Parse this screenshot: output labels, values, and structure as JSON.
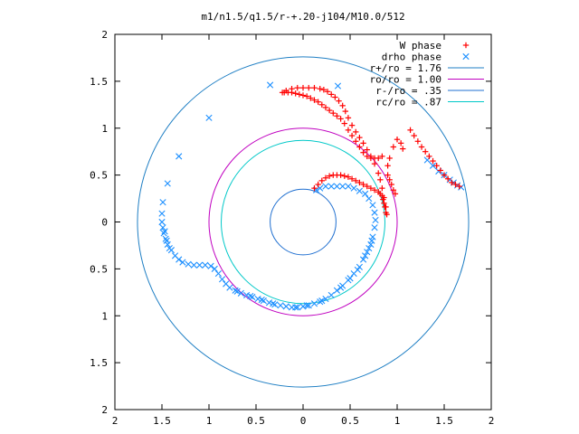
{
  "chart_data": {
    "type": "scatter",
    "title": "m1/n1.5/q1.5/r-+.20-j104/M10.0/512",
    "xlim": [
      -2,
      2
    ],
    "ylim": [
      -2,
      2
    ],
    "x_ticks": [
      -2,
      -1.5,
      -1,
      -0.5,
      0,
      0.5,
      1,
      1.5,
      2
    ],
    "y_ticks": [
      -2,
      -1.5,
      -1,
      -0.5,
      0,
      0.5,
      1,
      1.5,
      2
    ],
    "x_tick_labels": [
      "2",
      "1.5",
      "1",
      "0.5",
      "0",
      "0.5",
      "1",
      "1.5",
      "2"
    ],
    "y_tick_labels": [
      "2",
      "1.5",
      "1",
      "0.5",
      "0",
      "0.5",
      "1",
      "1.5",
      "2"
    ],
    "grid": false,
    "legend_position": "top-right",
    "series": [
      {
        "name": "W phase",
        "marker": "plus",
        "color": "#ff0000",
        "points": [
          [
            -0.22,
            1.38
          ],
          [
            -0.18,
            1.4
          ],
          [
            -0.12,
            1.42
          ],
          [
            -0.06,
            1.43
          ],
          [
            0.0,
            1.43
          ],
          [
            0.06,
            1.43
          ],
          [
            0.12,
            1.43
          ],
          [
            0.18,
            1.42
          ],
          [
            0.22,
            1.41
          ],
          [
            0.26,
            1.39
          ],
          [
            0.3,
            1.36
          ],
          [
            0.34,
            1.33
          ],
          [
            0.38,
            1.29
          ],
          [
            0.42,
            1.24
          ],
          [
            0.45,
            1.18
          ],
          [
            0.48,
            1.11
          ],
          [
            0.52,
            1.03
          ],
          [
            0.56,
            0.96
          ],
          [
            0.6,
            0.9
          ],
          [
            0.64,
            0.84
          ],
          [
            0.68,
            0.77
          ],
          [
            0.72,
            0.7
          ],
          [
            0.76,
            0.62
          ],
          [
            0.8,
            0.52
          ],
          [
            0.82,
            0.45
          ],
          [
            0.84,
            0.36
          ],
          [
            0.86,
            0.26
          ],
          [
            0.88,
            0.16
          ],
          [
            0.89,
            0.08
          ],
          [
            -0.2,
            1.38
          ],
          [
            -0.16,
            1.38
          ],
          [
            -0.12,
            1.38
          ],
          [
            -0.08,
            1.37
          ],
          [
            -0.04,
            1.36
          ],
          [
            0.0,
            1.35
          ],
          [
            0.04,
            1.34
          ],
          [
            0.08,
            1.32
          ],
          [
            0.12,
            1.3
          ],
          [
            0.16,
            1.28
          ],
          [
            0.2,
            1.25
          ],
          [
            0.24,
            1.22
          ],
          [
            0.28,
            1.19
          ],
          [
            0.32,
            1.16
          ],
          [
            0.36,
            1.13
          ],
          [
            0.4,
            1.1
          ],
          [
            0.44,
            1.05
          ],
          [
            0.48,
            0.98
          ],
          [
            0.52,
            0.92
          ],
          [
            0.56,
            0.86
          ],
          [
            0.6,
            0.8
          ],
          [
            0.64,
            0.74
          ],
          [
            0.68,
            0.7
          ],
          [
            0.72,
            0.68
          ],
          [
            0.76,
            0.68
          ],
          [
            0.8,
            0.68
          ],
          [
            0.12,
            0.36
          ],
          [
            0.16,
            0.4
          ],
          [
            0.2,
            0.44
          ],
          [
            0.24,
            0.47
          ],
          [
            0.28,
            0.49
          ],
          [
            0.32,
            0.5
          ],
          [
            0.36,
            0.5
          ],
          [
            0.4,
            0.5
          ],
          [
            0.44,
            0.49
          ],
          [
            0.48,
            0.48
          ],
          [
            0.52,
            0.46
          ],
          [
            0.56,
            0.44
          ],
          [
            0.6,
            0.42
          ],
          [
            0.64,
            0.4
          ],
          [
            0.68,
            0.38
          ],
          [
            0.72,
            0.36
          ],
          [
            0.76,
            0.34
          ],
          [
            0.8,
            0.32
          ],
          [
            0.82,
            0.3
          ],
          [
            0.84,
            0.28
          ],
          [
            0.85,
            0.24
          ],
          [
            0.86,
            0.2
          ],
          [
            0.87,
            0.16
          ],
          [
            0.88,
            0.1
          ],
          [
            0.9,
            0.5
          ],
          [
            0.92,
            0.45
          ],
          [
            0.94,
            0.4
          ],
          [
            0.96,
            0.34
          ],
          [
            0.98,
            0.3
          ],
          [
            0.9,
            0.6
          ],
          [
            0.84,
            0.7
          ],
          [
            0.92,
            0.68
          ],
          [
            0.96,
            0.8
          ],
          [
            1.0,
            0.88
          ],
          [
            1.04,
            0.84
          ],
          [
            1.06,
            0.78
          ],
          [
            1.14,
            0.98
          ],
          [
            1.18,
            0.92
          ],
          [
            1.22,
            0.86
          ],
          [
            1.26,
            0.8
          ],
          [
            1.3,
            0.75
          ],
          [
            1.34,
            0.7
          ],
          [
            1.38,
            0.65
          ],
          [
            1.42,
            0.6
          ],
          [
            1.46,
            0.55
          ],
          [
            1.5,
            0.5
          ],
          [
            1.54,
            0.46
          ],
          [
            1.58,
            0.42
          ],
          [
            1.62,
            0.4
          ],
          [
            1.66,
            0.38
          ]
        ]
      },
      {
        "name": "drho phase",
        "marker": "cross",
        "color": "#1e90ff",
        "points": [
          [
            -0.35,
            1.46
          ],
          [
            0.37,
            1.45
          ],
          [
            -1.0,
            1.11
          ],
          [
            -1.32,
            0.7
          ],
          [
            -1.44,
            0.41
          ],
          [
            -1.49,
            0.21
          ],
          [
            -1.5,
            0.09
          ],
          [
            -1.5,
            0.0
          ],
          [
            -1.49,
            -0.06
          ],
          [
            -1.48,
            -0.12
          ],
          [
            -1.46,
            -0.18
          ],
          [
            -1.44,
            -0.24
          ],
          [
            -1.4,
            -0.3
          ],
          [
            -1.36,
            -0.36
          ],
          [
            -1.32,
            -0.4
          ],
          [
            -1.28,
            -0.43
          ],
          [
            -1.22,
            -0.45
          ],
          [
            -1.16,
            -0.46
          ],
          [
            -1.1,
            -0.46
          ],
          [
            -1.04,
            -0.46
          ],
          [
            -0.98,
            -0.47
          ],
          [
            -0.94,
            -0.5
          ],
          [
            -0.9,
            -0.55
          ],
          [
            -0.86,
            -0.61
          ],
          [
            -0.82,
            -0.66
          ],
          [
            -0.78,
            -0.7
          ],
          [
            -0.72,
            -0.73
          ],
          [
            -0.66,
            -0.76
          ],
          [
            -0.6,
            -0.78
          ],
          [
            -0.54,
            -0.8
          ],
          [
            -0.48,
            -0.82
          ],
          [
            -0.42,
            -0.84
          ],
          [
            -0.36,
            -0.86
          ],
          [
            -0.3,
            -0.88
          ],
          [
            -0.24,
            -0.89
          ],
          [
            -0.18,
            -0.9
          ],
          [
            -0.12,
            -0.91
          ],
          [
            -0.06,
            -0.91
          ],
          [
            0.0,
            -0.9
          ],
          [
            0.06,
            -0.89
          ],
          [
            0.12,
            -0.87
          ],
          [
            0.18,
            -0.85
          ],
          [
            0.24,
            -0.82
          ],
          [
            0.3,
            -0.78
          ],
          [
            0.36,
            -0.73
          ],
          [
            0.42,
            -0.68
          ],
          [
            0.48,
            -0.62
          ],
          [
            0.54,
            -0.55
          ],
          [
            0.6,
            -0.48
          ],
          [
            0.64,
            -0.4
          ],
          [
            0.68,
            -0.32
          ],
          [
            0.72,
            -0.24
          ],
          [
            0.74,
            -0.16
          ],
          [
            0.76,
            -0.06
          ],
          [
            0.77,
            0.02
          ],
          [
            0.76,
            0.1
          ],
          [
            0.74,
            0.18
          ],
          [
            0.7,
            0.25
          ],
          [
            0.66,
            0.3
          ],
          [
            0.6,
            0.33
          ],
          [
            0.54,
            0.36
          ],
          [
            0.48,
            0.38
          ],
          [
            0.42,
            0.38
          ],
          [
            0.36,
            0.38
          ],
          [
            0.3,
            0.38
          ],
          [
            0.24,
            0.38
          ],
          [
            0.18,
            0.36
          ],
          [
            0.14,
            0.34
          ],
          [
            -1.47,
            -0.1
          ],
          [
            -1.45,
            -0.2
          ],
          [
            -1.42,
            -0.28
          ],
          [
            -0.7,
            -0.74
          ],
          [
            -0.56,
            -0.79
          ],
          [
            -0.44,
            -0.83
          ],
          [
            -0.32,
            -0.87
          ],
          [
            0.66,
            -0.36
          ],
          [
            0.7,
            -0.28
          ],
          [
            0.73,
            -0.2
          ],
          [
            0.58,
            -0.51
          ],
          [
            0.5,
            -0.6
          ],
          [
            0.4,
            -0.7
          ],
          [
            0.2,
            -0.84
          ],
          [
            0.04,
            -0.89
          ],
          [
            -0.08,
            -0.91
          ],
          [
            1.32,
            0.66
          ],
          [
            1.38,
            0.6
          ],
          [
            1.44,
            0.54
          ],
          [
            1.5,
            0.5
          ],
          [
            1.56,
            0.45
          ],
          [
            1.6,
            0.42
          ],
          [
            1.64,
            0.39
          ],
          [
            1.68,
            0.37
          ]
        ]
      }
    ],
    "circles": [
      {
        "name": "r+/ro = 1.76",
        "radius": 1.76,
        "color": "#1f7fc4"
      },
      {
        "name": "ro/ro = 1.00",
        "radius": 1.0,
        "color": "#c000c0"
      },
      {
        "name": "r-/ro = .35",
        "radius": 0.35,
        "color": "#1f6fd0"
      },
      {
        "name": "rc/ro = .87",
        "radius": 0.87,
        "color": "#00c8c8"
      }
    ]
  }
}
